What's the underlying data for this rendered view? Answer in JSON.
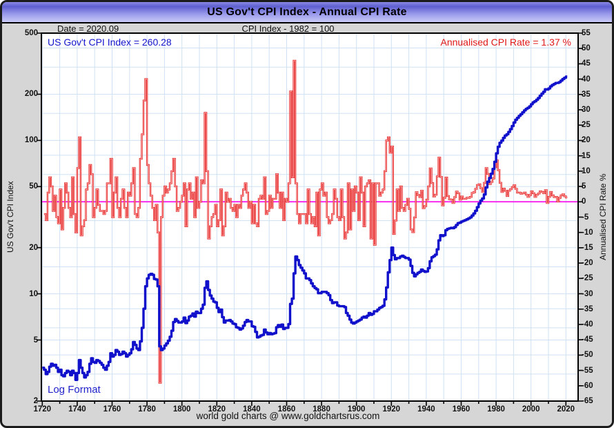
{
  "window": {
    "title": "US Gov't CPI Index - Annual CPI Rate"
  },
  "header": {
    "date_label": "Date = 2020.09",
    "index_base_label": "CPI Index - 1982 = 100"
  },
  "legend": {
    "index_text": "US Gov't CPI Index = 260.28",
    "rate_text": "Annualised CPI Rate = 1.37 %",
    "index_color": "#1414cc",
    "rate_color": "#e01818"
  },
  "footer": {
    "log_format_label": "Log Format",
    "credit": "world gold charts @ www.goldchartsrus.com"
  },
  "colors": {
    "grid": "#cfe1f3",
    "plot_bg": "#ffffff",
    "frame_bg": "#d6d6d6",
    "plot_border": "#000000",
    "zero_line": "#ff00ee"
  },
  "chart_data": {
    "type": "line",
    "title": "US Gov't CPI Index - Annual CPI Rate",
    "x_axis": {
      "range": [
        1719.5,
        2027
      ],
      "major_ticks": [
        1720,
        1740,
        1760,
        1780,
        1800,
        1820,
        1840,
        1860,
        1880,
        1900,
        1920,
        1940,
        1960,
        1980,
        2000,
        2020
      ],
      "minor_start": 1720,
      "minor_end": 2020,
      "minor_step": 10
    },
    "left_axis": {
      "label": "US Gov't CPI Index",
      "scale": "log",
      "range": [
        2,
        500
      ],
      "ticks": [
        500,
        200,
        100,
        50,
        20,
        10,
        5,
        2
      ],
      "gridlines": [
        2,
        3,
        4,
        5,
        6,
        8,
        10,
        15,
        20,
        30,
        40,
        50,
        60,
        80,
        100,
        150,
        200,
        300,
        400,
        500
      ]
    },
    "right_axis": {
      "label": "Annualised CPI Rate %",
      "scale": "linear",
      "range": [
        -65,
        55
      ],
      "tick_step": 5
    },
    "zero_line": {
      "axis": "right",
      "value": 0
    },
    "series": [
      {
        "name": "US Gov't CPI Index",
        "axis": "left",
        "color": "#1111cc",
        "width": 3.4,
        "start_year": 1720,
        "values": [
          3.3,
          3.2,
          3.0,
          3.1,
          3.35,
          3.5,
          3.4,
          3.45,
          3.3,
          3.1,
          3.2,
          2.95,
          2.9,
          3.05,
          3.15,
          3.1,
          2.95,
          3.15,
          3.05,
          2.75,
          3.05,
          3.7,
          3.3,
          3.05,
          2.85,
          2.95,
          3.1,
          3.5,
          3.8,
          3.6,
          3.55,
          3.7,
          3.65,
          3.55,
          3.45,
          3.3,
          3.2,
          3.4,
          3.6,
          4.1,
          3.9,
          4.0,
          4.3,
          4.2,
          4.0,
          4.05,
          4.2,
          4.1,
          3.9,
          4.0,
          4.1,
          4.35,
          4.85,
          4.65,
          4.4,
          4.3,
          4.9,
          6.0,
          8.0,
          11.2,
          12.6,
          13.3,
          13.5,
          13.3,
          12.5,
          12.4,
          11.2,
          4.55,
          4.3,
          4.4,
          4.6,
          4.75,
          4.95,
          5.25,
          5.75,
          6.55,
          6.85,
          6.65,
          6.5,
          6.5,
          6.6,
          7.0,
          6.45,
          6.7,
          7.1,
          7.2,
          7.45,
          7.1,
          7.65,
          7.5,
          7.5,
          8.0,
          8.5,
          10.95,
          12.05,
          10.6,
          9.75,
          9.3,
          8.9,
          8.8,
          8.1,
          7.6,
          7.9,
          7.05,
          6.5,
          6.7,
          6.7,
          6.75,
          6.6,
          6.4,
          6.35,
          6.05,
          6.0,
          5.85,
          5.95,
          6.2,
          6.55,
          6.75,
          6.6,
          6.6,
          6.15,
          6.1,
          5.65,
          5.2,
          5.25,
          5.35,
          5.4,
          5.85,
          5.6,
          5.45,
          5.55,
          5.45,
          5.5,
          5.55,
          6.05,
          6.25,
          6.1,
          6.3,
          5.9,
          6.0,
          6.0,
          6.35,
          8.6,
          9.3,
          13.6,
          17.5,
          16.6,
          15.4,
          14.8,
          14.2,
          13.6,
          12.6,
          12.6,
          12.3,
          11.7,
          11.2,
          10.9,
          10.7,
          10.1,
          10.1,
          10.3,
          10.3,
          10.3,
          10.1,
          9.8,
          9.1,
          8.7,
          8.8,
          8.8,
          8.4,
          8.3,
          8.3,
          8.3,
          8.2,
          7.5,
          7.2,
          6.8,
          6.5,
          6.4,
          6.5,
          6.6,
          6.7,
          6.8,
          7.0,
          7.1,
          7.0,
          7.2,
          7.5,
          7.3,
          7.4,
          7.7,
          7.7,
          7.9,
          8.1,
          8.2,
          8.35,
          9.2,
          11.0,
          13.8,
          16.6,
          20.0,
          17.9,
          16.8,
          17.1,
          17.1,
          17.5,
          17.7,
          17.4,
          17.1,
          17.1,
          16.7,
          15.2,
          13.7,
          13.0,
          13.4,
          13.7,
          13.9,
          14.4,
          14.1,
          13.9,
          14.0,
          14.7,
          16.3,
          17.3,
          17.6,
          18.0,
          19.5,
          22.3,
          24.1,
          23.8,
          24.1,
          26.0,
          26.5,
          26.7,
          26.9,
          26.8,
          27.2,
          28.1,
          28.9,
          29.1,
          29.6,
          29.9,
          30.2,
          30.6,
          31.0,
          31.5,
          32.4,
          33.4,
          34.8,
          36.7,
          38.8,
          40.5,
          41.8,
          44.4,
          49.3,
          53.8,
          56.9,
          60.6,
          65.2,
          72.6,
          82.4,
          90.9,
          96.5,
          99.6,
          103.9,
          107.6,
          109.6,
          113.6,
          118.3,
          124.0,
          130.7,
          136.2,
          140.3,
          144.5,
          148.2,
          152.4,
          156.9,
          160.5,
          163.0,
          166.6,
          172.2,
          177.1,
          179.9,
          184.0,
          188.9,
          195.3,
          201.6,
          207.3,
          215.3,
          214.5,
          218.1,
          224.9,
          229.6,
          233.0,
          236.7,
          237.0,
          240.0,
          245.1,
          251.1,
          255.7,
          260.28
        ]
      },
      {
        "name": "Annualised CPI Rate %",
        "axis": "right",
        "color": "#e01818",
        "inner_color": "#ffaaaa",
        "width": 2.4,
        "start_year": 1721,
        "values": [
          -4,
          -6,
          3,
          8,
          5,
          -3,
          2,
          -5,
          -7,
          4,
          -9,
          -2,
          6,
          3,
          -2,
          -5,
          8,
          -4,
          -10,
          11,
          21,
          -11,
          -8,
          -6,
          4,
          6,
          12,
          9,
          -5,
          -2,
          4,
          -1,
          -3,
          -3,
          -4,
          -3,
          6,
          6,
          14,
          -5,
          3,
          8,
          -2,
          -5,
          1,
          4,
          -2,
          -5,
          3,
          2,
          6,
          11,
          -4,
          -5,
          -2,
          14,
          22,
          33,
          40,
          12,
          6,
          2,
          -2,
          -6,
          -1,
          -10,
          -59,
          -5,
          2,
          5,
          3,
          4,
          6,
          10,
          14,
          5,
          -3,
          -2,
          0,
          2,
          6,
          -8,
          4,
          6,
          1,
          3,
          -5,
          8,
          -2,
          0,
          7,
          6,
          29,
          10,
          -12,
          -8,
          -5,
          -4,
          -1,
          -8,
          -6,
          4,
          -11,
          -8,
          3,
          0,
          1,
          -2,
          -3,
          -1,
          -5,
          -1,
          -2,
          2,
          4,
          6,
          3,
          -2,
          0,
          -7,
          -1,
          -7,
          -8,
          1,
          2,
          1,
          8,
          -4,
          -3,
          2,
          -2,
          1,
          1,
          9,
          3,
          -2,
          3,
          -6,
          1,
          0,
          6,
          36,
          8,
          46,
          6,
          -4,
          -7,
          -4,
          -4,
          -4,
          -7,
          4,
          -4,
          -7,
          -5,
          -8,
          3,
          -11,
          4,
          6,
          2,
          3,
          -5,
          -7,
          -6,
          -4,
          4,
          1,
          -5,
          -6,
          4,
          -5,
          -12,
          -10,
          6,
          -9,
          4,
          -3,
          5,
          3,
          -6,
          8,
          3,
          -8,
          5,
          6,
          7,
          -12,
          6,
          -14,
          6,
          6,
          2,
          3,
          4,
          10,
          20,
          21,
          16,
          18,
          -10.5,
          -6.1,
          4,
          -3,
          5,
          -2,
          -3,
          -1,
          1,
          -2.3,
          -9,
          -9.9,
          -5.1,
          3.1,
          2.2,
          1.5,
          3.6,
          -2.1,
          -1.4,
          0.7,
          5,
          10.9,
          6.1,
          1.7,
          2.3,
          8.3,
          14.4,
          8.1,
          -1.2,
          1.3,
          7.9,
          1.9,
          0.8,
          0.7,
          -0.4,
          1.5,
          3.3,
          2.8,
          0.7,
          1.7,
          1.0,
          1.0,
          1.3,
          1.3,
          1.6,
          2.9,
          3.1,
          4.2,
          5.5,
          5.7,
          4.4,
          3.2,
          6.2,
          11.0,
          9.1,
          5.8,
          6.5,
          7.6,
          11.3,
          13.5,
          10.3,
          6.2,
          3.2,
          4.3,
          3.6,
          1.9,
          3.6,
          4.1,
          4.8,
          5.4,
          4.2,
          3.0,
          3.0,
          2.6,
          2.8,
          3.0,
          2.3,
          1.6,
          2.2,
          3.4,
          2.8,
          1.6,
          2.3,
          2.7,
          3.4,
          3.2,
          2.8,
          3.8,
          -0.4,
          1.6,
          3.2,
          2.1,
          1.5,
          1.6,
          0.1,
          1.3,
          2.1,
          2.4,
          1.8,
          1.37
        ]
      }
    ]
  }
}
